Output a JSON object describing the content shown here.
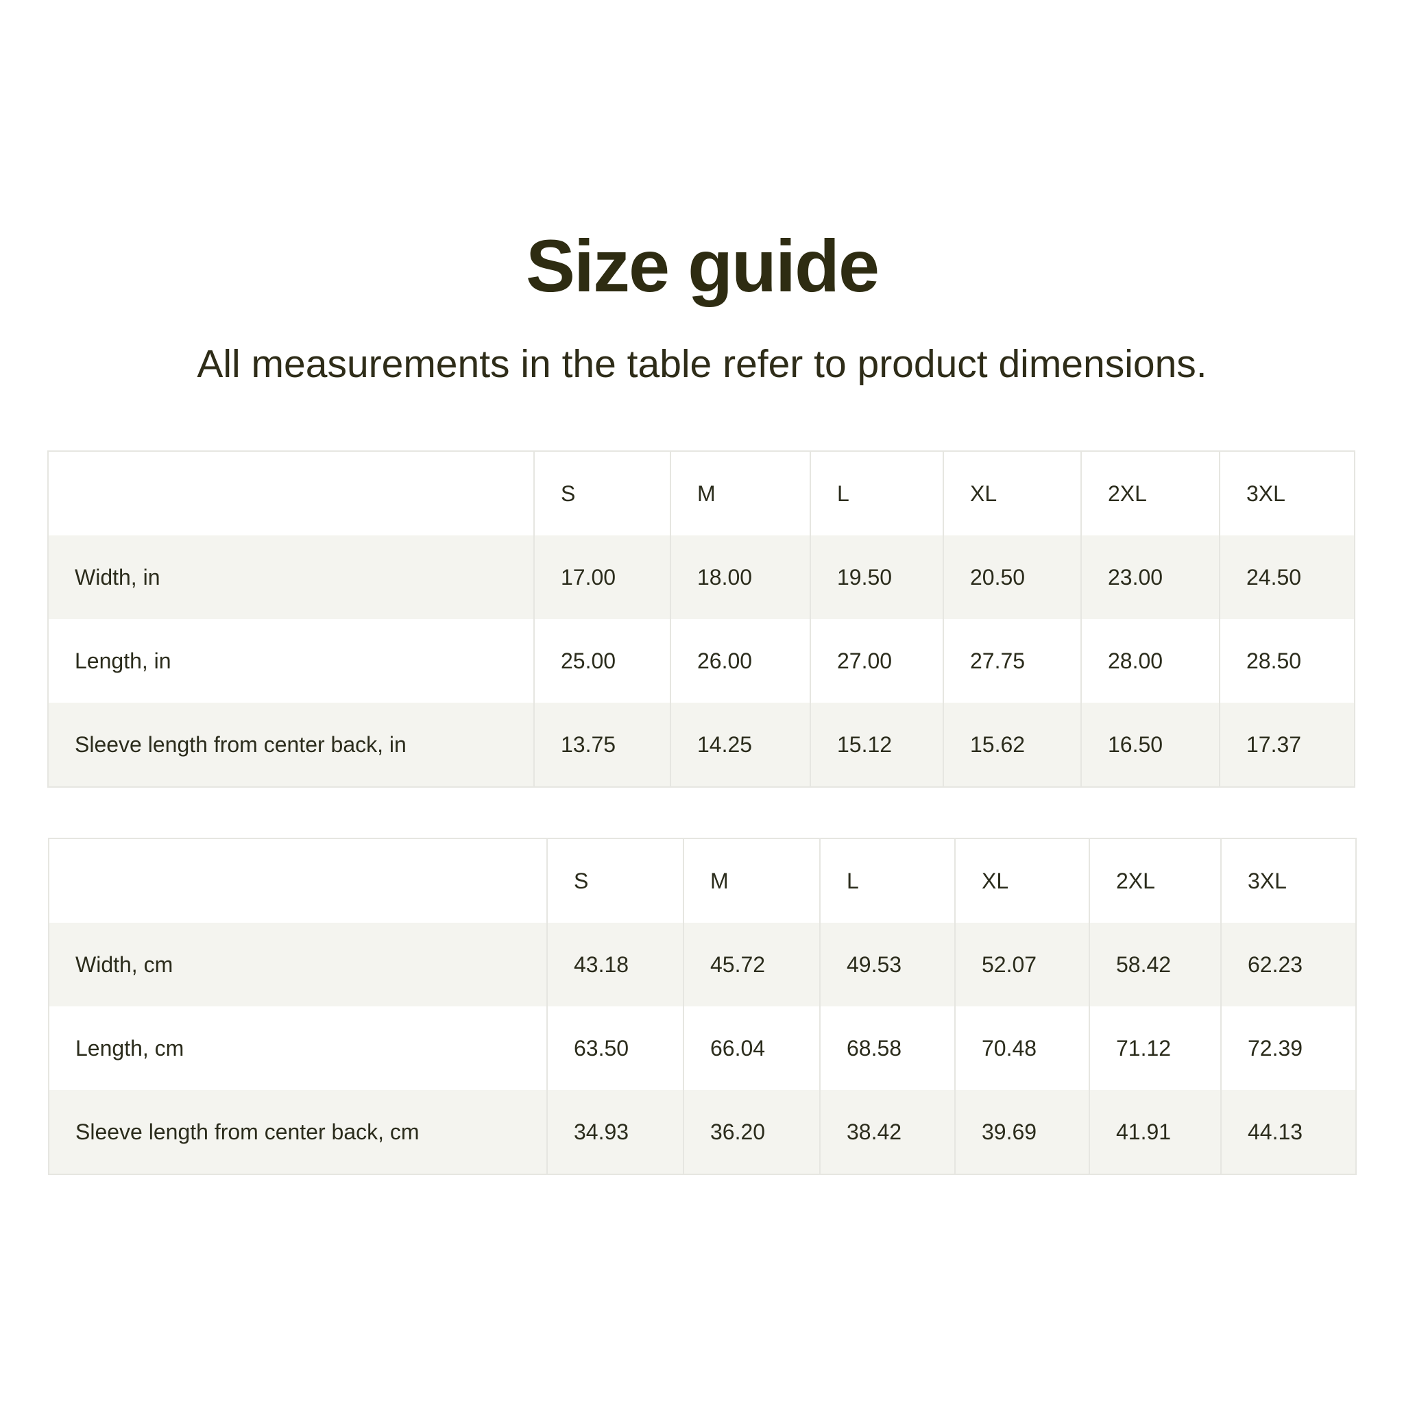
{
  "header": {
    "title": "Size guide",
    "subtitle": "All measurements in the table refer to product dimensions."
  },
  "colors": {
    "text": "#2b2c1c",
    "title": "#2e2c12",
    "stripe": "#f4f4ef",
    "border": "#e6e6e1"
  },
  "tables": [
    {
      "columns": [
        "",
        "S",
        "M",
        "L",
        "XL",
        "2XL",
        "3XL"
      ],
      "rows": [
        {
          "label": "Width, in",
          "values": [
            "17.00",
            "18.00",
            "19.50",
            "20.50",
            "23.00",
            "24.50"
          ]
        },
        {
          "label": "Length, in",
          "values": [
            "25.00",
            "26.00",
            "27.00",
            "27.75",
            "28.00",
            "28.50"
          ]
        },
        {
          "label": "Sleeve length from center back, in",
          "values": [
            "13.75",
            "14.25",
            "15.12",
            "15.62",
            "16.50",
            "17.37"
          ]
        }
      ]
    },
    {
      "columns": [
        "",
        "S",
        "M",
        "L",
        "XL",
        "2XL",
        "3XL"
      ],
      "rows": [
        {
          "label": "Width, cm",
          "values": [
            "43.18",
            "45.72",
            "49.53",
            "52.07",
            "58.42",
            "62.23"
          ]
        },
        {
          "label": "Length, cm",
          "values": [
            "63.50",
            "66.04",
            "68.58",
            "70.48",
            "71.12",
            "72.39"
          ]
        },
        {
          "label": "Sleeve length from center back, cm",
          "values": [
            "34.93",
            "36.20",
            "38.42",
            "39.69",
            "41.91",
            "44.13"
          ]
        }
      ]
    }
  ]
}
